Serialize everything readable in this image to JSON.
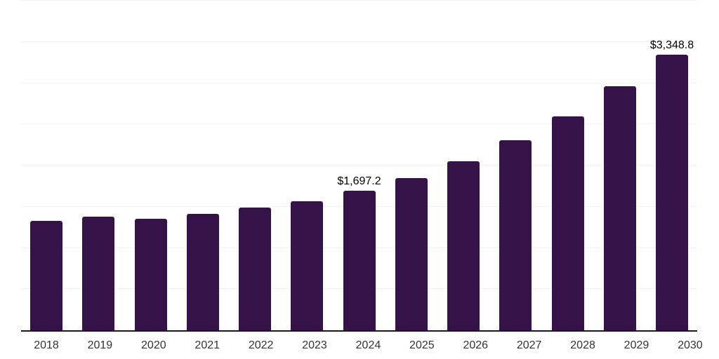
{
  "chart_data": {
    "type": "bar",
    "title": "",
    "xlabel": "",
    "ylabel": "",
    "categories": [
      "2018",
      "2019",
      "2020",
      "2021",
      "2022",
      "2023",
      "2024",
      "2025",
      "2026",
      "2027",
      "2028",
      "2029",
      "2030"
    ],
    "values": [
      1327.4,
      1375.5,
      1350.1,
      1411.9,
      1488.2,
      1567.0,
      1697.2,
      1849.8,
      2053.1,
      2307.2,
      2597.7,
      2959.4,
      3348.8
    ],
    "labeled_points": [
      {
        "category": "2024",
        "label": "$1,697.2"
      },
      {
        "category": "2030",
        "label": "$3,348.8"
      }
    ],
    "ylim": [
      0,
      4000
    ],
    "gridline_interval": 500,
    "grid": true,
    "legend": false,
    "y_tick_labels_visible": false
  },
  "style": {
    "bar_color": "#351349",
    "grid_color": "#f2f2f2",
    "axis_color": "#1a1a1a",
    "tick_text_color": "#333333",
    "data_label_color": "#000000",
    "background_color": "#ffffff"
  }
}
